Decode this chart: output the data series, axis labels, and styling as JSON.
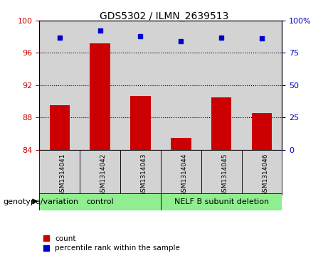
{
  "title": "GDS5302 / ILMN_2639513",
  "samples": [
    "GSM1314041",
    "GSM1314042",
    "GSM1314043",
    "GSM1314044",
    "GSM1314045",
    "GSM1314046"
  ],
  "count_values": [
    89.5,
    97.2,
    90.7,
    85.5,
    90.5,
    88.5
  ],
  "percentile_values": [
    86.7,
    92.2,
    87.7,
    84.3,
    86.7,
    86.5
  ],
  "ylim_left": [
    84,
    100
  ],
  "ylim_right": [
    0,
    100
  ],
  "yticks_left": [
    84,
    88,
    92,
    96,
    100
  ],
  "yticks_right": [
    0,
    25,
    50,
    75,
    100
  ],
  "ytick_labels_right": [
    "0",
    "25",
    "50",
    "75",
    "100%"
  ],
  "gridlines_at": [
    88,
    92,
    96
  ],
  "bar_color": "#cc0000",
  "bar_baseline": 84,
  "percentile_color": "#0000cc",
  "bar_width": 0.5,
  "genotype_label": "genotype/variation",
  "legend_count_label": "count",
  "legend_percentile_label": "percentile rank within the sample",
  "tick_label_color_left": "#cc0000",
  "tick_label_color_right": "#0000cc",
  "col_bg_color": "#d3d3d3",
  "group_bg_color": "#90ee90",
  "control_indices": [
    0,
    1,
    2
  ],
  "deletion_indices": [
    3,
    4,
    5
  ],
  "control_label": "control",
  "deletion_label": "NELF B subunit deletion"
}
